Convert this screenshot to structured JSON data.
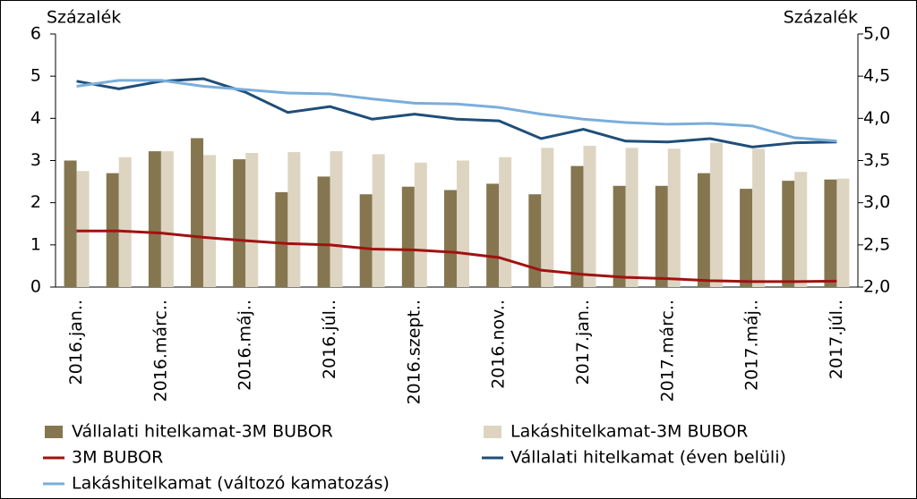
{
  "chart_data": {
    "type": "bar",
    "ylabel": "Százalék",
    "y2label": "Százalék",
    "categories": [
      "2016.jan..",
      null,
      "2016.márc..",
      null,
      "2016.máj..",
      null,
      "2016.júl..",
      null,
      "2016.szept..",
      null,
      "2016.nov..",
      null,
      "2017.jan..",
      null,
      "2017.márc..",
      null,
      "2017.máj..",
      null,
      "2017.júl.."
    ],
    "ylim": [
      0,
      6
    ],
    "yticks": [
      0,
      1,
      2,
      3,
      4,
      5,
      6
    ],
    "y2lim": [
      2.0,
      5.0
    ],
    "y2ticks": [
      {
        "value": 2.0,
        "label": "2,0"
      },
      {
        "value": 2.5,
        "label": "2,5"
      },
      {
        "value": 3.0,
        "label": "3,0"
      },
      {
        "value": 3.5,
        "label": "3,5"
      },
      {
        "value": 4.0,
        "label": "4,0"
      },
      {
        "value": 4.5,
        "label": "4,5"
      },
      {
        "value": 5.0,
        "label": "5,0"
      }
    ],
    "series": [
      {
        "name": "Vállalati hitelkamat-3M BUBOR",
        "type": "bar",
        "color": "#857650",
        "values": [
          3.0,
          2.7,
          3.22,
          3.53,
          3.03,
          2.25,
          2.62,
          2.2,
          2.38,
          2.3,
          2.45,
          2.2,
          2.87,
          2.4,
          2.4,
          2.7,
          2.33,
          2.52,
          2.55
        ]
      },
      {
        "name": "Lakáshitelkamat-3M BUBOR",
        "type": "bar",
        "color": "#ddd5c2",
        "values": [
          2.75,
          3.08,
          3.22,
          3.13,
          3.18,
          3.2,
          3.22,
          3.15,
          2.95,
          3.0,
          3.08,
          3.3,
          3.35,
          3.3,
          3.28,
          3.42,
          3.28,
          2.73,
          2.57
        ]
      },
      {
        "name": "3M BUBOR",
        "type": "line",
        "color": "#a0120f",
        "values": [
          1.33,
          1.33,
          1.28,
          1.18,
          1.1,
          1.03,
          1.0,
          0.9,
          0.88,
          0.82,
          0.7,
          0.4,
          0.3,
          0.23,
          0.2,
          0.15,
          0.13,
          0.13,
          0.14
        ]
      },
      {
        "name": "Vállalati hitelkamat (éven belüli)",
        "type": "line",
        "axis": "y2",
        "color": "#1f4e79",
        "values": [
          4.44,
          4.35,
          4.44,
          4.47,
          4.31,
          4.07,
          4.14,
          3.99,
          4.05,
          3.99,
          3.97,
          3.76,
          3.87,
          3.73,
          3.72,
          3.76,
          3.66,
          3.71,
          3.72
        ]
      },
      {
        "name": "Lakáshitelkamat (változó kamatozás)",
        "type": "line",
        "axis": "y2",
        "color": "#7aaedb",
        "values": [
          4.38,
          4.45,
          4.45,
          4.38,
          4.34,
          4.3,
          4.29,
          4.23,
          4.18,
          4.17,
          4.13,
          4.05,
          3.99,
          3.95,
          3.93,
          3.94,
          3.91,
          3.77,
          3.73
        ]
      }
    ]
  }
}
